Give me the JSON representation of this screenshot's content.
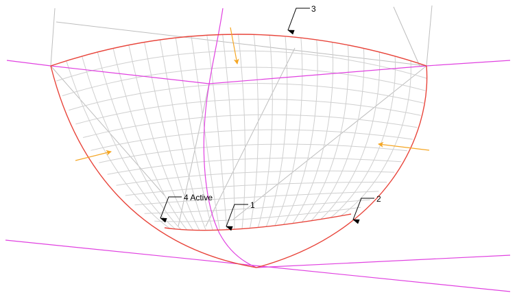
{
  "viewport": {
    "background": "#ffffff"
  },
  "colors": {
    "boundary": "#e8443a",
    "construction_line": "#e040e0",
    "mesh": "#cfcfcf",
    "guide_line": "#bdbdbd",
    "direction_arrow": "#f5a623",
    "label": "#000000"
  },
  "labels": {
    "curve_1": "1",
    "curve_2": "2",
    "curve_3": "3",
    "curve_4": "4 Active"
  },
  "icons": {
    "label_pointer": "leader-arrow-icon",
    "direction_arrow": "direction-arrow-icon"
  }
}
